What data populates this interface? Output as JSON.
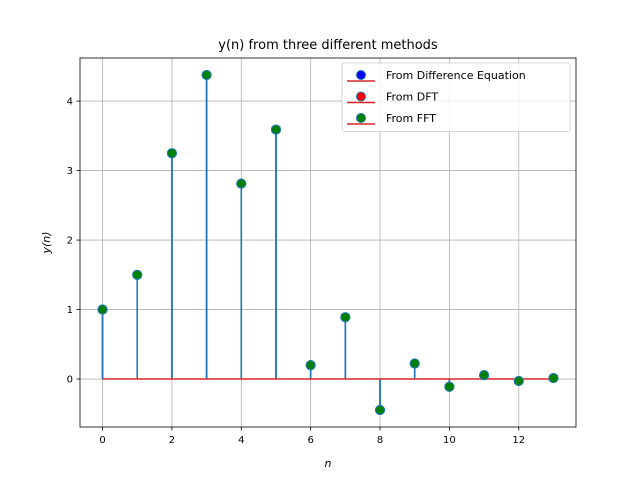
{
  "chart_data": {
    "type": "stem",
    "title": "y(n) from three different methods",
    "xlabel": "n",
    "ylabel": "y(n)",
    "xlim": [
      -0.65,
      13.65
    ],
    "ylim": [
      -0.69,
      4.62
    ],
    "xticks": [
      0,
      2,
      4,
      6,
      8,
      10,
      12
    ],
    "yticks": [
      0,
      1,
      2,
      3,
      4
    ],
    "grid": true,
    "legend_position": "top-right",
    "x": [
      0,
      1,
      2,
      3,
      4,
      5,
      6,
      7,
      8,
      9,
      10,
      11,
      12,
      13
    ],
    "series": [
      {
        "name": "From Difference Equation",
        "marker_color": "#0000ff",
        "values": [
          1.0,
          1.5,
          3.25,
          4.375,
          2.8125,
          3.59,
          0.2,
          0.89,
          -0.445,
          0.223,
          -0.111,
          0.056,
          -0.028,
          0.014
        ]
      },
      {
        "name": "From DFT",
        "marker_color": "#ff0000",
        "values": [
          1.0,
          1.5,
          3.25,
          4.375,
          2.8125,
          3.59,
          0.2,
          0.89,
          -0.445,
          0.223,
          -0.111,
          0.056,
          -0.028,
          0.014
        ]
      },
      {
        "name": "From FFT",
        "marker_color": "#008000",
        "values": [
          1.0,
          1.5,
          3.25,
          4.375,
          2.8125,
          3.59,
          0.2,
          0.89,
          -0.445,
          0.223,
          -0.111,
          0.056,
          -0.028,
          0.014
        ]
      }
    ],
    "colors": {
      "stem": "#1f77b4",
      "baseline": "#d62728",
      "marker_edge": "#1f77b4",
      "grid": "#b0b0b0"
    }
  }
}
